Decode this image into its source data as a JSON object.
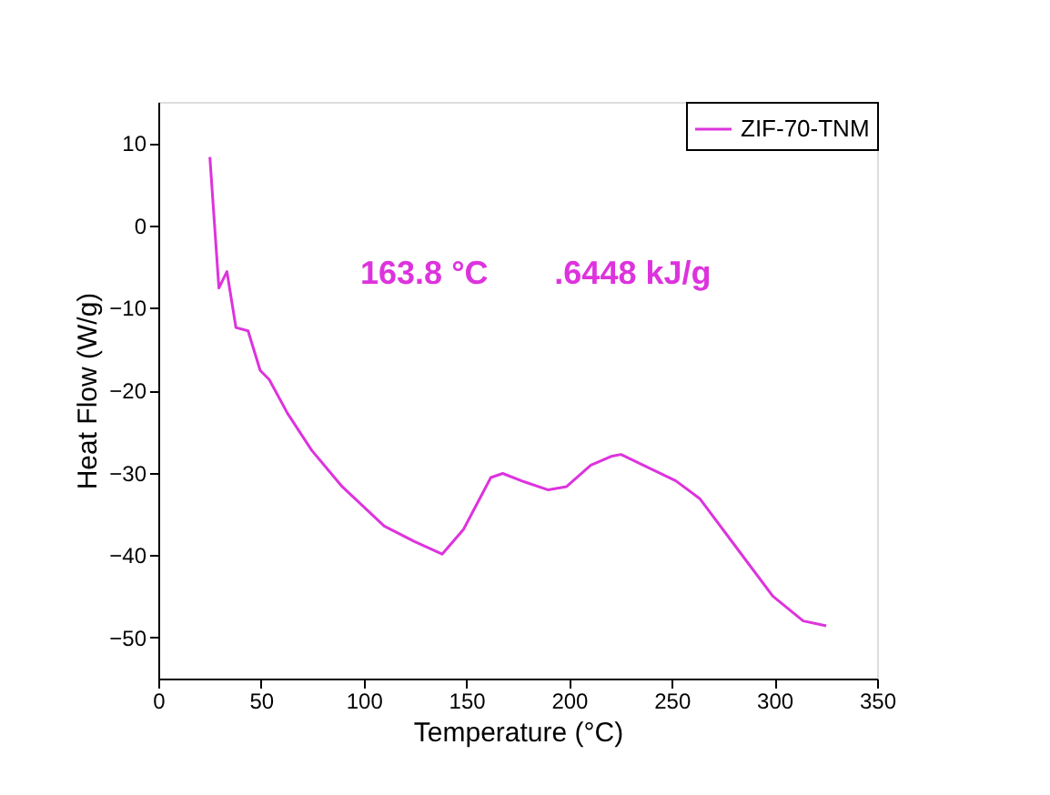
{
  "chart_data": {
    "type": "line",
    "xlabel": "Temperature (°C)",
    "ylabel": "Heat Flow (W/g)",
    "xlim": [
      0,
      350
    ],
    "xticks": [
      0,
      50,
      100,
      150,
      200,
      250,
      300,
      350
    ],
    "ylim": [
      -55,
      15
    ],
    "yticks": [
      -50,
      -40,
      -30,
      -20,
      -10,
      0,
      10
    ],
    "grid": false,
    "legend": "top right",
    "marker": "none",
    "line_style": "solid",
    "annotations": [
      "163.8 °C",
      ".6448 kJ/g"
    ],
    "series": [
      {
        "name": "ZIF-70-TNM",
        "color": "#dd33dd",
        "x": [
          25.1,
          29.5,
          33.4,
          37.8,
          43.7,
          49.6,
          54,
          62.9,
          74.7,
          89.5,
          110,
          125,
          138.2,
          148.6,
          161.9,
          167.7,
          178,
          189.9,
          198.8,
          210.6,
          220.9,
          225.3,
          252,
          263.8,
          281.5,
          299.2,
          314,
          325.2
        ],
        "values": [
          8.3,
          -7.6,
          -5.6,
          -12.4,
          -12.8,
          -17.6,
          -18.7,
          -22.8,
          -27.3,
          -31.7,
          -36.5,
          -38.4,
          -39.9,
          -36.9,
          -30.6,
          -30.1,
          -31.1,
          -32.1,
          -31.7,
          -29.1,
          -28,
          -27.8,
          -31,
          -33.2,
          -39.1,
          -45,
          -48,
          -48.6
        ]
      }
    ]
  }
}
